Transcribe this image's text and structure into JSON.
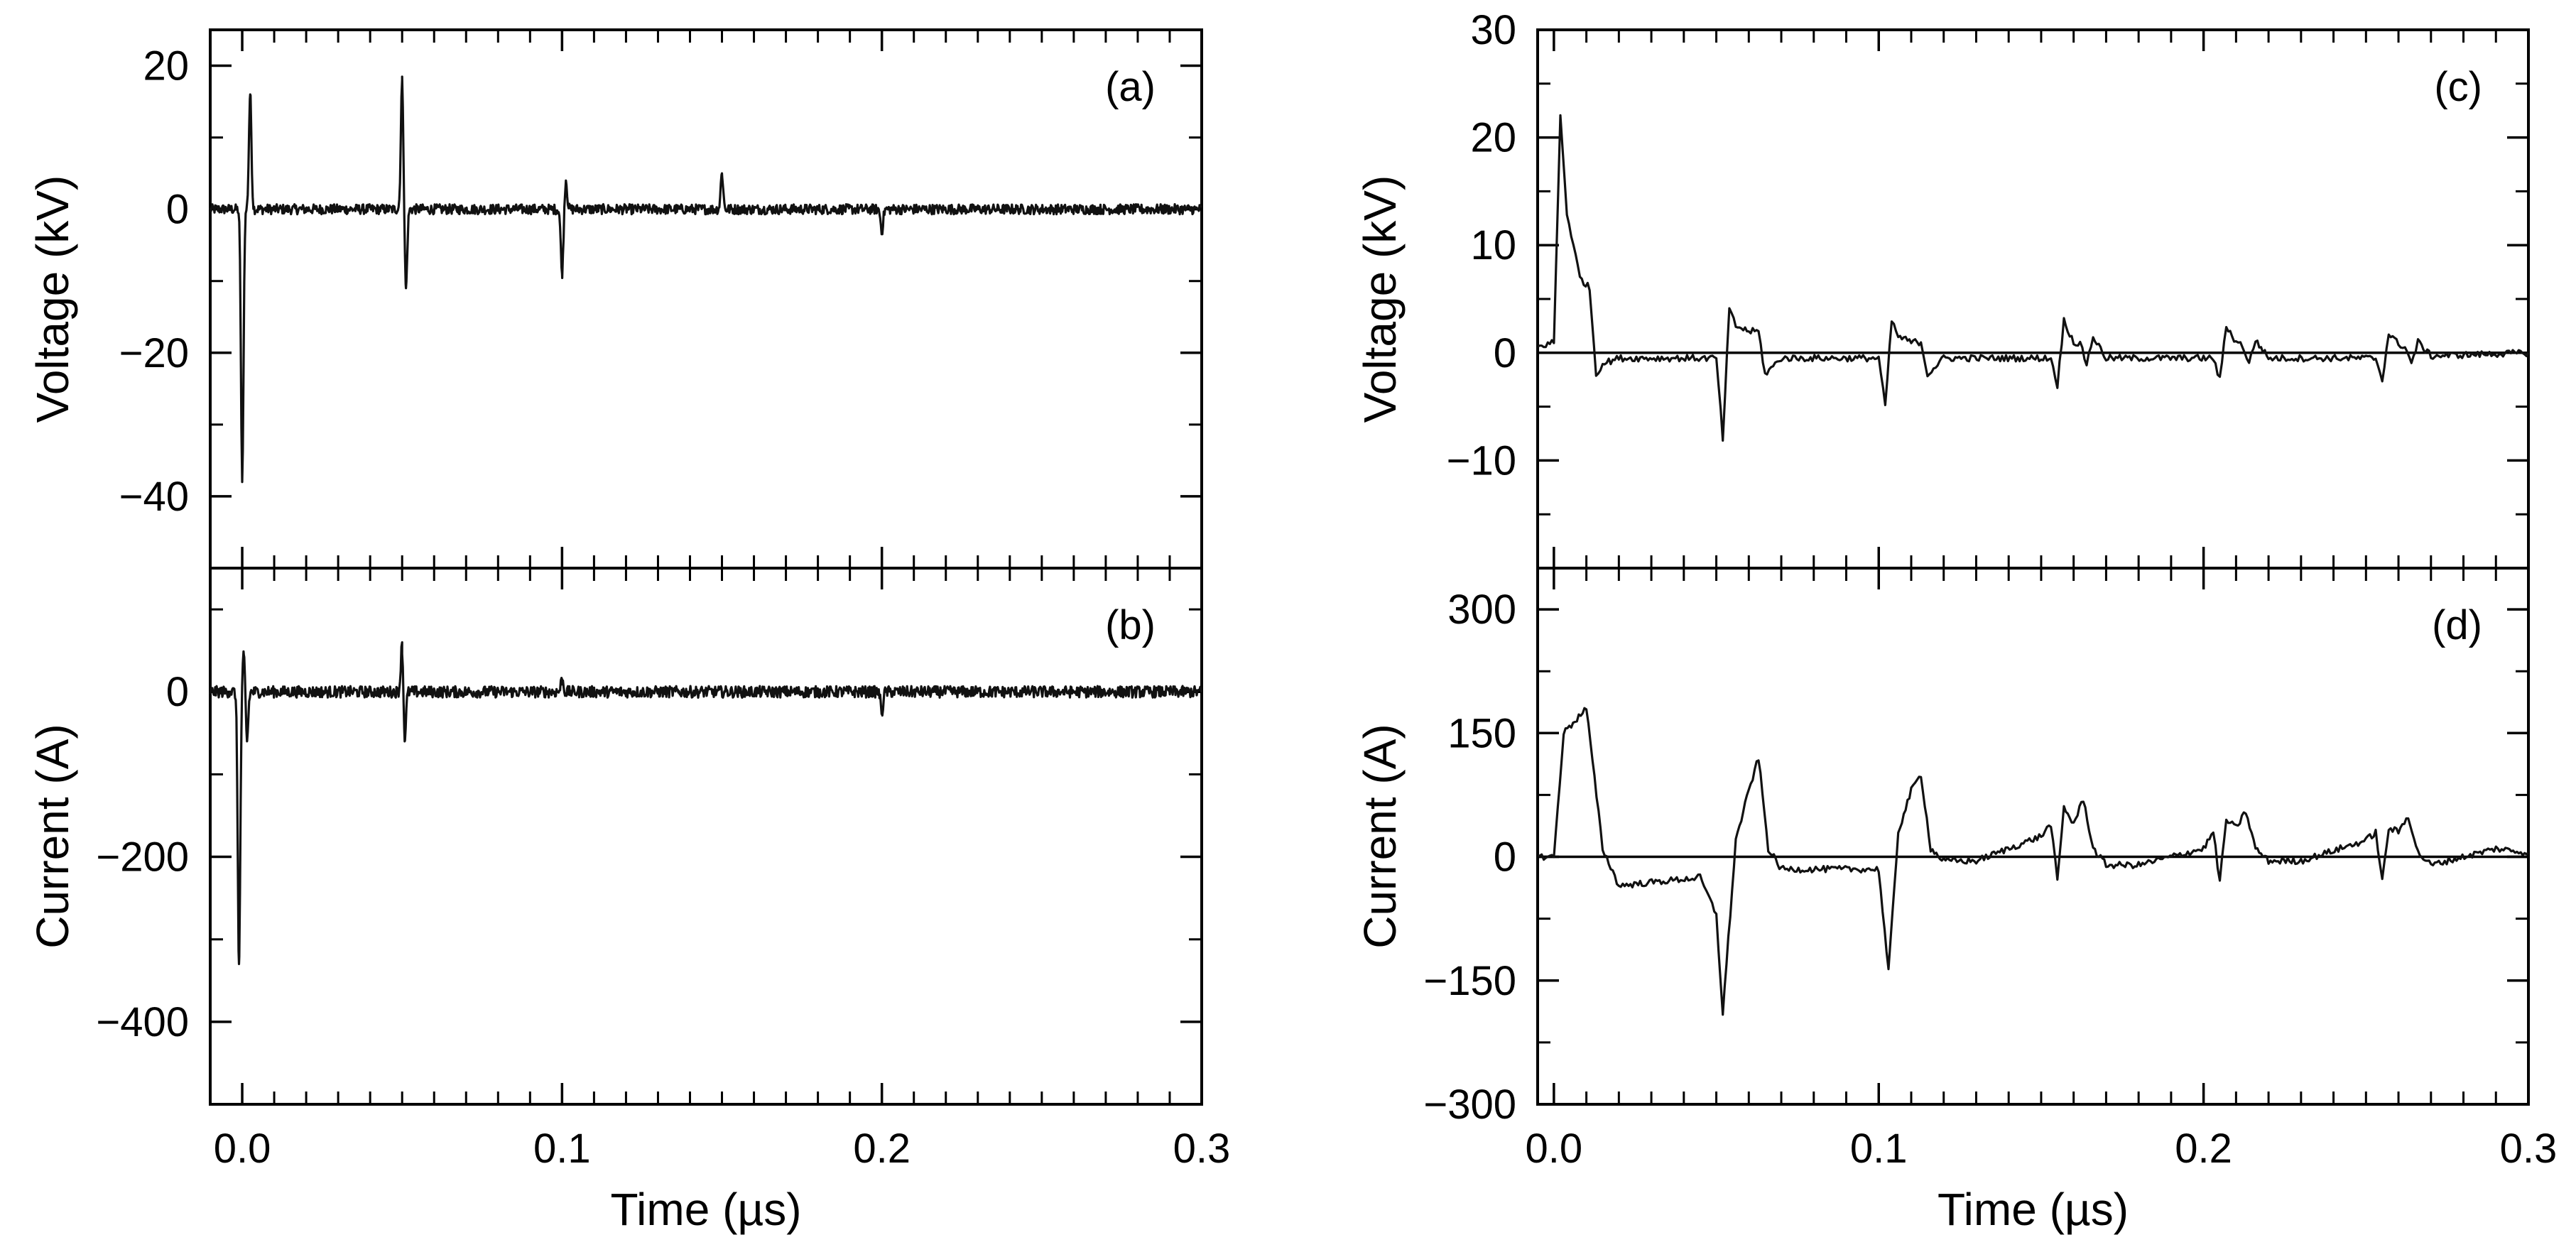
{
  "chart_data": [
    {
      "id": "a",
      "type": "line",
      "panel_label": "(a)",
      "xlabel": "",
      "ylabel": "Voltage (kV)",
      "xlim": [
        -0.01,
        0.3
      ],
      "ylim": [
        -50,
        25
      ],
      "xticks": [
        0.0,
        0.1,
        0.2,
        0.3
      ],
      "yticks": [
        -40,
        -20,
        0,
        20
      ],
      "ytick_labels": [
        "−40",
        "−20",
        "0",
        "20"
      ],
      "zero_line": false,
      "pulses": [
        {
          "t": 0.0,
          "a": -38
        },
        {
          "t": 0.0025,
          "a": 16
        },
        {
          "t": 0.05,
          "a": 18
        },
        {
          "t": 0.0512,
          "a": -11
        },
        {
          "t": 0.1,
          "a": -9
        },
        {
          "t": 0.1012,
          "a": 4
        },
        {
          "t": 0.15,
          "a": 5
        },
        {
          "t": 0.2,
          "a": -3
        }
      ],
      "noise": 0.7
    },
    {
      "id": "b",
      "type": "line",
      "panel_label": "(b)",
      "xlabel": "Time (µs)",
      "ylabel": "Current (A)",
      "xlim": [
        -0.01,
        0.3
      ],
      "ylim": [
        -500,
        150
      ],
      "xticks": [
        0.0,
        0.1,
        0.2,
        0.3
      ],
      "xtick_labels": [
        "0.0",
        "0.1",
        "0.2",
        "0.3"
      ],
      "yticks": [
        -400,
        -200,
        0
      ],
      "ytick_labels": [
        "−400",
        "−200",
        "0"
      ],
      "zero_line": false,
      "pulses": [
        {
          "t": -0.001,
          "a": -330
        },
        {
          "t": 0.0005,
          "a": 45
        },
        {
          "t": 0.0015,
          "a": -60
        },
        {
          "t": 0.05,
          "a": 60
        },
        {
          "t": 0.0508,
          "a": -60
        },
        {
          "t": 0.1,
          "a": 15
        },
        {
          "t": 0.2,
          "a": -25
        }
      ],
      "noise": 7
    },
    {
      "id": "c",
      "type": "line",
      "panel_label": "(c)",
      "xlabel": "",
      "ylabel": "Voltage (kV)",
      "xlim": [
        -0.005,
        0.3
      ],
      "ylim": [
        -20,
        30
      ],
      "xticks": [
        0.0,
        0.1,
        0.2,
        0.3
      ],
      "yticks": [
        -10,
        0,
        10,
        20,
        30
      ],
      "ytick_labels": [
        "−10",
        "0",
        "10",
        "20",
        "30"
      ],
      "zero_line": true,
      "x": [
        -0.005,
        0.0,
        0.002,
        0.004,
        0.006,
        0.008,
        0.011,
        0.013,
        0.015,
        0.02,
        0.05,
        0.052,
        0.054,
        0.056,
        0.06,
        0.063,
        0.065,
        0.07,
        0.1,
        0.102,
        0.104,
        0.106,
        0.11,
        0.113,
        0.115,
        0.12,
        0.153,
        0.155,
        0.157,
        0.16,
        0.162,
        0.164,
        0.166,
        0.17,
        0.203,
        0.205,
        0.207,
        0.21,
        0.212,
        0.214,
        0.216,
        0.22,
        0.253,
        0.255,
        0.257,
        0.26,
        0.262,
        0.264,
        0.266,
        0.27,
        0.3
      ],
      "y": [
        0.5,
        1,
        22,
        13,
        10,
        7,
        6,
        -2,
        -1,
        -0.5,
        -0.5,
        -8,
        4,
        2.5,
        2,
        2,
        -2,
        -0.5,
        -0.5,
        -5,
        3,
        1.5,
        1,
        1,
        -2,
        -0.5,
        -0.5,
        -3,
        3,
        1,
        0.8,
        -1,
        1.5,
        -0.5,
        -0.5,
        -2.5,
        2.5,
        1,
        0.7,
        -1,
        1.2,
        -0.5,
        -0.5,
        -2.5,
        1.8,
        0.8,
        0.6,
        -1,
        1,
        -0.3,
        0
      ]
    },
    {
      "id": "d",
      "type": "line",
      "panel_label": "(d)",
      "xlabel": "Time (µs)",
      "ylabel": "Current (A)",
      "xlim": [
        -0.005,
        0.3
      ],
      "ylim": [
        -300,
        350
      ],
      "xticks": [
        0.0,
        0.1,
        0.2,
        0.3
      ],
      "xtick_labels": [
        "0.0",
        "0.1",
        "0.2",
        "0.3"
      ],
      "yticks": [
        -300,
        -150,
        0,
        150,
        300
      ],
      "ytick_labels": [
        "−300",
        "−150",
        "0",
        "150",
        "300"
      ],
      "zero_line": true,
      "x": [
        -0.005,
        0.0,
        0.003,
        0.01,
        0.015,
        0.02,
        0.045,
        0.05,
        0.052,
        0.056,
        0.06,
        0.063,
        0.066,
        0.07,
        0.08,
        0.1,
        0.103,
        0.106,
        0.11,
        0.113,
        0.116,
        0.12,
        0.13,
        0.15,
        0.153,
        0.155,
        0.157,
        0.16,
        0.163,
        0.166,
        0.17,
        0.18,
        0.2,
        0.203,
        0.205,
        0.207,
        0.21,
        0.213,
        0.216,
        0.22,
        0.23,
        0.25,
        0.253,
        0.255,
        0.257,
        0.26,
        0.263,
        0.266,
        0.27,
        0.29,
        0.3
      ],
      "y": [
        0,
        0,
        150,
        180,
        10,
        -35,
        -25,
        -70,
        -190,
        20,
        80,
        120,
        10,
        -15,
        -15,
        -15,
        -140,
        30,
        80,
        100,
        10,
        -5,
        -5,
        25,
        40,
        -30,
        60,
        40,
        70,
        10,
        -10,
        -10,
        10,
        30,
        -30,
        45,
        35,
        55,
        10,
        -5,
        -5,
        20,
        30,
        -30,
        35,
        30,
        50,
        5,
        -10,
        10,
        5
      ]
    }
  ]
}
